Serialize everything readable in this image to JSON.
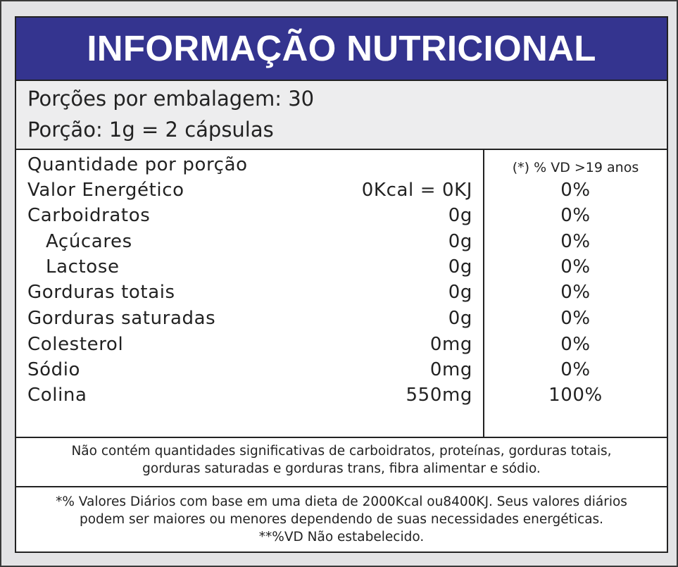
{
  "title": "INFORMAÇÃO NUTRICIONAL",
  "serving": {
    "per_package": "Porções por embalagem: 30",
    "portion": "Porção: 1g = 2 cápsulas"
  },
  "table": {
    "header_label": "Quantidade por porção",
    "header_vd": "(*) % VD  >19 anos",
    "rows": [
      {
        "label": "Valor Energético",
        "amount": "0Kcal = 0KJ",
        "vd": "0%"
      },
      {
        "label": "Carboidratos",
        "amount": "0g",
        "vd": "0%"
      },
      {
        "label": "Açúcares",
        "amount": "0g",
        "vd": "0%"
      },
      {
        "label": "Lactose",
        "amount": "0g",
        "vd": "0%"
      },
      {
        "label": "Gorduras totais",
        "amount": "0g",
        "vd": "0%"
      },
      {
        "label": "Gorduras saturadas",
        "amount": "0g",
        "vd": "0%"
      },
      {
        "label": "Colesterol",
        "amount": "0mg",
        "vd": "0%"
      },
      {
        "label": "Sódio",
        "amount": "0mg",
        "vd": "0%"
      },
      {
        "label": "Colina",
        "amount": "550mg",
        "vd": "100%"
      }
    ]
  },
  "notes": {
    "not_significant_line1": "Não contém quantidades significativas de carboidratos, proteínas, gorduras totais,",
    "not_significant_line2": "gorduras saturadas e gorduras trans, fibra alimentar e sódio.",
    "daily_values_line1": "*% Valores Diários com base em uma dieta de 2000Kcal ou8400KJ. Seus valores diários",
    "daily_values_line2": "podem ser maiores ou menores dependendo de suas necessidades energéticas.",
    "daily_values_line3": "**%VD Não estabelecido."
  },
  "colors": {
    "title_bar": "#34348f",
    "serving_bg": "#ededee",
    "page_bg": "#e3e3e5"
  }
}
